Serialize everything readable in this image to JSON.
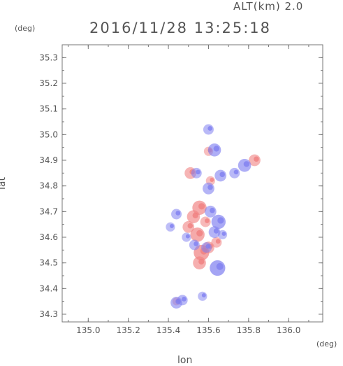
{
  "header": {
    "altitude_label": "ALT(km) 2.0",
    "timestamp": "2016/11/28 13:25:18"
  },
  "axes": {
    "y_unit": "(deg)",
    "x_unit": "(deg)",
    "x_label": "lon",
    "y_label": "lat"
  },
  "colors": {
    "frame": "#777777",
    "text": "#555555",
    "positive": "#f08080",
    "negative": "#7f7ff0"
  },
  "chart_data": {
    "type": "heatmap",
    "title": "2016/11/28 13:25:18",
    "subtitle": "ALT(km) 2.0",
    "xlabel": "lon",
    "ylabel": "lat",
    "x_unit": "(deg)",
    "y_unit": "(deg)",
    "xlim": [
      134.87,
      136.17
    ],
    "ylim": [
      34.27,
      35.35
    ],
    "x_ticks": [
      135.0,
      135.2,
      135.4,
      135.6,
      135.8,
      136.0
    ],
    "x_tick_labels": [
      "135.0",
      "135.2",
      "135.4",
      "135.6",
      "135.8",
      "136.0"
    ],
    "y_ticks": [
      34.3,
      34.4,
      34.5,
      34.6,
      34.7,
      34.8,
      34.9,
      35.0,
      35.1,
      35.2,
      35.3
    ],
    "y_tick_labels": [
      "34.3",
      "34.4",
      "34.5",
      "34.6",
      "34.7",
      "34.8",
      "34.9",
      "35.0",
      "35.1",
      "35.2",
      "35.3"
    ],
    "grid": false,
    "echo_patches": [
      {
        "lon": 135.555,
        "lat": 34.715,
        "sign": "positive",
        "intensity": 0.8
      },
      {
        "lon": 135.525,
        "lat": 34.68,
        "sign": "positive",
        "intensity": 0.7
      },
      {
        "lon": 135.5,
        "lat": 34.64,
        "sign": "positive",
        "intensity": 0.6
      },
      {
        "lon": 135.545,
        "lat": 34.61,
        "sign": "positive",
        "intensity": 0.8
      },
      {
        "lon": 135.565,
        "lat": 34.54,
        "sign": "positive",
        "intensity": 0.9
      },
      {
        "lon": 135.555,
        "lat": 34.5,
        "sign": "positive",
        "intensity": 0.7
      },
      {
        "lon": 135.6,
        "lat": 34.56,
        "sign": "positive",
        "intensity": 0.6
      },
      {
        "lon": 135.585,
        "lat": 34.66,
        "sign": "positive",
        "intensity": 0.5
      },
      {
        "lon": 135.64,
        "lat": 34.58,
        "sign": "positive",
        "intensity": 0.5
      },
      {
        "lon": 135.51,
        "lat": 34.85,
        "sign": "positive",
        "intensity": 0.6
      },
      {
        "lon": 135.61,
        "lat": 34.82,
        "sign": "positive",
        "intensity": 0.4
      },
      {
        "lon": 135.83,
        "lat": 34.9,
        "sign": "positive",
        "intensity": 0.6
      },
      {
        "lon": 135.44,
        "lat": 34.35,
        "sign": "positive",
        "intensity": 0.3
      },
      {
        "lon": 135.6,
        "lat": 34.935,
        "sign": "positive",
        "intensity": 0.4
      },
      {
        "lon": 135.61,
        "lat": 34.7,
        "sign": "negative",
        "intensity": 0.6
      },
      {
        "lon": 135.65,
        "lat": 34.66,
        "sign": "negative",
        "intensity": 0.8
      },
      {
        "lon": 135.63,
        "lat": 34.62,
        "sign": "negative",
        "intensity": 0.6
      },
      {
        "lon": 135.59,
        "lat": 34.56,
        "sign": "negative",
        "intensity": 0.5
      },
      {
        "lon": 135.645,
        "lat": 34.48,
        "sign": "negative",
        "intensity": 0.9
      },
      {
        "lon": 135.49,
        "lat": 34.6,
        "sign": "negative",
        "intensity": 0.4
      },
      {
        "lon": 135.53,
        "lat": 34.57,
        "sign": "negative",
        "intensity": 0.5
      },
      {
        "lon": 135.67,
        "lat": 34.61,
        "sign": "negative",
        "intensity": 0.4
      },
      {
        "lon": 135.66,
        "lat": 34.84,
        "sign": "negative",
        "intensity": 0.6
      },
      {
        "lon": 135.73,
        "lat": 34.85,
        "sign": "negative",
        "intensity": 0.5
      },
      {
        "lon": 135.6,
        "lat": 34.79,
        "sign": "negative",
        "intensity": 0.6
      },
      {
        "lon": 135.54,
        "lat": 34.85,
        "sign": "negative",
        "intensity": 0.5
      },
      {
        "lon": 135.78,
        "lat": 34.88,
        "sign": "negative",
        "intensity": 0.7
      },
      {
        "lon": 135.63,
        "lat": 34.94,
        "sign": "negative",
        "intensity": 0.7
      },
      {
        "lon": 135.6,
        "lat": 35.02,
        "sign": "negative",
        "intensity": 0.5
      },
      {
        "lon": 135.44,
        "lat": 34.345,
        "sign": "negative",
        "intensity": 0.6
      },
      {
        "lon": 135.47,
        "lat": 34.355,
        "sign": "negative",
        "intensity": 0.5
      },
      {
        "lon": 135.57,
        "lat": 34.37,
        "sign": "negative",
        "intensity": 0.4
      },
      {
        "lon": 135.44,
        "lat": 34.69,
        "sign": "negative",
        "intensity": 0.5
      },
      {
        "lon": 135.41,
        "lat": 34.64,
        "sign": "negative",
        "intensity": 0.4
      }
    ]
  }
}
